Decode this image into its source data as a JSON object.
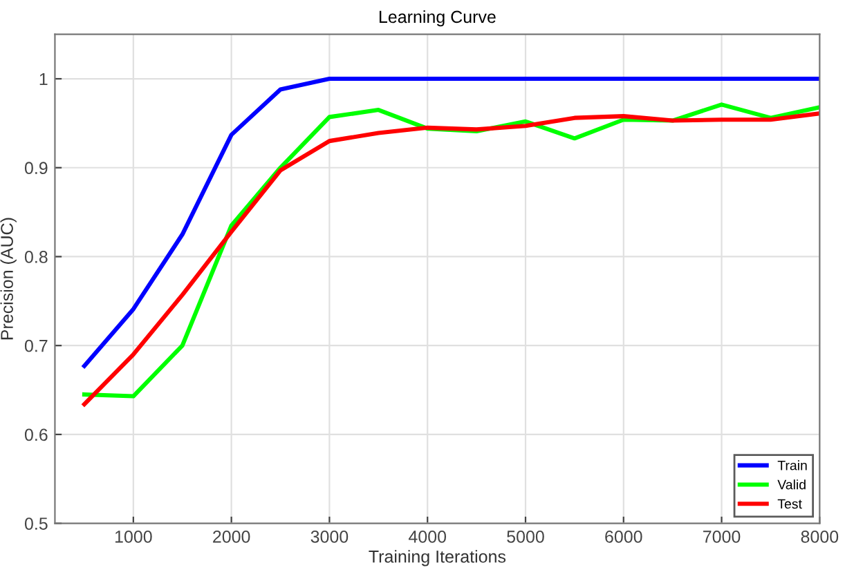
{
  "chart_data": {
    "type": "line",
    "title": "Learning Curve",
    "xlabel": "Training Iterations",
    "ylabel": "Precision (AUC)",
    "x": [
      500,
      1000,
      1500,
      2000,
      2500,
      3000,
      3500,
      4000,
      4500,
      5000,
      5500,
      6000,
      6500,
      7000,
      7500,
      8000
    ],
    "series": [
      {
        "name": "Train",
        "color": "#0000ff",
        "values": [
          0.677,
          0.741,
          0.825,
          0.937,
          0.988,
          1.0,
          1.0,
          1.0,
          1.0,
          1.0,
          1.0,
          1.0,
          1.0,
          1.0,
          1.0,
          1.0
        ]
      },
      {
        "name": "Valid",
        "color": "#00ff00",
        "values": [
          0.645,
          0.643,
          0.7,
          0.835,
          0.9,
          0.957,
          0.965,
          0.944,
          0.941,
          0.952,
          0.933,
          0.954,
          0.953,
          0.971,
          0.956,
          0.968
        ]
      },
      {
        "name": "Test",
        "color": "#ff0000",
        "values": [
          0.634,
          0.69,
          0.757,
          0.828,
          0.897,
          0.93,
          0.939,
          0.945,
          0.943,
          0.947,
          0.956,
          0.958,
          0.953,
          0.954,
          0.954,
          0.961
        ]
      }
    ],
    "xlim": [
      200,
      8000
    ],
    "xticks": [
      1000,
      2000,
      3000,
      4000,
      5000,
      6000,
      7000,
      8000
    ],
    "ylim": [
      0.5,
      1.05
    ],
    "yticks": [
      0.5,
      0.6,
      0.7,
      0.8,
      0.9,
      1
    ],
    "grid": true,
    "legend": "bottom right",
    "marker": "none",
    "line_style": "solid"
  }
}
